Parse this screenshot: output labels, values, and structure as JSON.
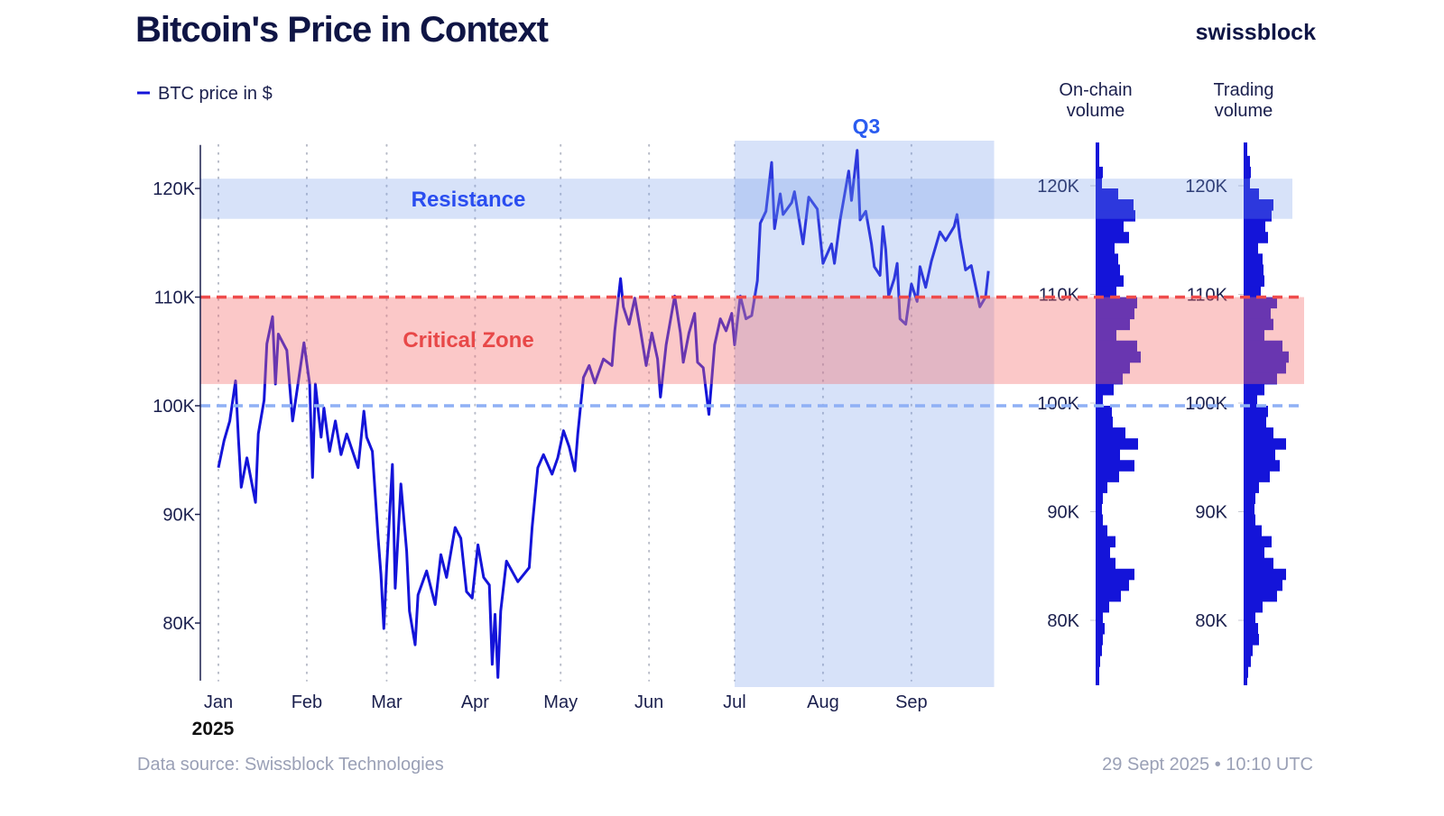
{
  "header": {
    "title": "Bitcoin's Price in Context",
    "logo": "swissblock"
  },
  "footer": {
    "source": "Data source: Swissblock Technologies",
    "timestamp": "29 Sept 2025 • 10:10 UTC"
  },
  "colors": {
    "line": "#1414d9",
    "title": "#0f1545",
    "resistance": "#2a4df0",
    "critical": "#e84848",
    "critical_line": "#ef4b4b",
    "support_line": "#8fb0f5",
    "q3": "#2a5cf0",
    "footer": "#9aa0b6"
  },
  "chart_data": [
    {
      "type": "line",
      "title": "Bitcoin's Price in Context",
      "legend": {
        "label": "BTC price in $",
        "placement": "top-left"
      },
      "x_tick_labels": [
        "Jan",
        "Feb",
        "Mar",
        "Apr",
        "May",
        "Jun",
        "Jul",
        "Aug",
        "Sep"
      ],
      "x_ticks": [
        "2025-01-01",
        "2025-02-01",
        "2025-03-01",
        "2025-04-01",
        "2025-05-01",
        "2025-06-01",
        "2025-07-01",
        "2025-08-01",
        "2025-09-01"
      ],
      "x_year_label": "2025",
      "y_tick_labels": [
        "80K",
        "90K",
        "100K",
        "110K",
        "120K"
      ],
      "y_ticks": [
        80000,
        90000,
        100000,
        110000,
        120000
      ],
      "ylim": [
        74700,
        124000
      ],
      "grid": "vertical dotted at month starts",
      "annotations": {
        "resistance": {
          "label": "Resistance",
          "range": [
            117200,
            120900
          ]
        },
        "critical_zone": {
          "label": "Critical Zone",
          "range": [
            102000,
            110000
          ]
        },
        "critical_line": 110000,
        "support_line": 100000,
        "q3": {
          "label": "Q3",
          "range": [
            "2025-07-01",
            "2025-09-30"
          ]
        }
      },
      "series": [
        {
          "name": "BTC price in $",
          "points": [
            [
              "2025-01-01",
              94300
            ],
            [
              "2025-01-03",
              96800
            ],
            [
              "2025-01-05",
              98600
            ],
            [
              "2025-01-07",
              102300
            ],
            [
              "2025-01-08",
              97100
            ],
            [
              "2025-01-09",
              92500
            ],
            [
              "2025-01-11",
              95200
            ],
            [
              "2025-01-14",
              91100
            ],
            [
              "2025-01-15",
              97400
            ],
            [
              "2025-01-17",
              100500
            ],
            [
              "2025-01-18",
              105700
            ],
            [
              "2025-01-20",
              108200
            ],
            [
              "2025-01-21",
              102000
            ],
            [
              "2025-01-22",
              106600
            ],
            [
              "2025-01-25",
              105100
            ],
            [
              "2025-01-27",
              98600
            ],
            [
              "2025-01-31",
              105800
            ],
            [
              "2025-02-02",
              102000
            ],
            [
              "2025-02-03",
              93400
            ],
            [
              "2025-02-04",
              102000
            ],
            [
              "2025-02-06",
              97100
            ],
            [
              "2025-02-07",
              99800
            ],
            [
              "2025-02-09",
              95800
            ],
            [
              "2025-02-11",
              98600
            ],
            [
              "2025-02-13",
              95500
            ],
            [
              "2025-02-15",
              97400
            ],
            [
              "2025-02-19",
              94300
            ],
            [
              "2025-02-21",
              99500
            ],
            [
              "2025-02-22",
              97100
            ],
            [
              "2025-02-24",
              95800
            ],
            [
              "2025-02-26",
              87800
            ],
            [
              "2025-02-27",
              84500
            ],
            [
              "2025-02-28",
              79500
            ],
            [
              "2025-03-01",
              85100
            ],
            [
              "2025-03-03",
              94600
            ],
            [
              "2025-03-04",
              83200
            ],
            [
              "2025-03-06",
              92800
            ],
            [
              "2025-03-08",
              86600
            ],
            [
              "2025-03-09",
              81100
            ],
            [
              "2025-03-11",
              78000
            ],
            [
              "2025-03-12",
              82600
            ],
            [
              "2025-03-15",
              84800
            ],
            [
              "2025-03-18",
              81700
            ],
            [
              "2025-03-20",
              86300
            ],
            [
              "2025-03-22",
              84200
            ],
            [
              "2025-03-25",
              88800
            ],
            [
              "2025-03-27",
              87800
            ],
            [
              "2025-03-29",
              82900
            ],
            [
              "2025-03-31",
              82300
            ],
            [
              "2025-04-02",
              87200
            ],
            [
              "2025-04-04",
              84200
            ],
            [
              "2025-04-06",
              83500
            ],
            [
              "2025-04-07",
              76200
            ],
            [
              "2025-04-08",
              80800
            ],
            [
              "2025-04-09",
              75000
            ],
            [
              "2025-04-10",
              81100
            ],
            [
              "2025-04-12",
              85700
            ],
            [
              "2025-04-16",
              83800
            ],
            [
              "2025-04-20",
              85100
            ],
            [
              "2025-04-21",
              88800
            ],
            [
              "2025-04-23",
              94300
            ],
            [
              "2025-04-25",
              95500
            ],
            [
              "2025-04-28",
              93700
            ],
            [
              "2025-04-30",
              95200
            ],
            [
              "2025-05-02",
              97700
            ],
            [
              "2025-05-04",
              96200
            ],
            [
              "2025-05-06",
              94000
            ],
            [
              "2025-05-07",
              97400
            ],
            [
              "2025-05-09",
              102600
            ],
            [
              "2025-05-11",
              103700
            ],
            [
              "2025-05-13",
              102100
            ],
            [
              "2025-05-16",
              104300
            ],
            [
              "2025-05-19",
              103700
            ],
            [
              "2025-05-20",
              106900
            ],
            [
              "2025-05-22",
              111700
            ],
            [
              "2025-05-23",
              109100
            ],
            [
              "2025-05-25",
              107500
            ],
            [
              "2025-05-27",
              109900
            ],
            [
              "2025-05-29",
              106900
            ],
            [
              "2025-05-31",
              103700
            ],
            [
              "2025-06-02",
              106700
            ],
            [
              "2025-06-04",
              104300
            ],
            [
              "2025-06-05",
              100800
            ],
            [
              "2025-06-07",
              105600
            ],
            [
              "2025-06-10",
              110100
            ],
            [
              "2025-06-12",
              106700
            ],
            [
              "2025-06-13",
              104000
            ],
            [
              "2025-06-15",
              106700
            ],
            [
              "2025-06-17",
              108500
            ],
            [
              "2025-06-18",
              104000
            ],
            [
              "2025-06-20",
              103500
            ],
            [
              "2025-06-22",
              99200
            ],
            [
              "2025-06-24",
              105600
            ],
            [
              "2025-06-26",
              108000
            ],
            [
              "2025-06-28",
              106900
            ],
            [
              "2025-06-30",
              108500
            ],
            [
              "2025-07-01",
              105600
            ],
            [
              "2025-07-03",
              110100
            ],
            [
              "2025-07-05",
              108000
            ],
            [
              "2025-07-07",
              108300
            ],
            [
              "2025-07-09",
              111500
            ],
            [
              "2025-07-10",
              116800
            ],
            [
              "2025-07-12",
              117900
            ],
            [
              "2025-07-14",
              122400
            ],
            [
              "2025-07-15",
              116300
            ],
            [
              "2025-07-17",
              119500
            ],
            [
              "2025-07-18",
              117600
            ],
            [
              "2025-07-21",
              118700
            ],
            [
              "2025-07-22",
              119700
            ],
            [
              "2025-07-25",
              114900
            ],
            [
              "2025-07-27",
              119200
            ],
            [
              "2025-07-30",
              118100
            ],
            [
              "2025-08-01",
              113100
            ],
            [
              "2025-08-04",
              114900
            ],
            [
              "2025-08-05",
              113100
            ],
            [
              "2025-08-07",
              117100
            ],
            [
              "2025-08-10",
              121600
            ],
            [
              "2025-08-11",
              118900
            ],
            [
              "2025-08-13",
              123500
            ],
            [
              "2025-08-14",
              117100
            ],
            [
              "2025-08-16",
              117900
            ],
            [
              "2025-08-18",
              114900
            ],
            [
              "2025-08-19",
              112800
            ],
            [
              "2025-08-21",
              112000
            ],
            [
              "2025-08-22",
              116500
            ],
            [
              "2025-08-23",
              114400
            ],
            [
              "2025-08-24",
              110100
            ],
            [
              "2025-08-26",
              111700
            ],
            [
              "2025-08-27",
              113100
            ],
            [
              "2025-08-28",
              108000
            ],
            [
              "2025-08-30",
              107500
            ],
            [
              "2025-09-01",
              111200
            ],
            [
              "2025-09-03",
              109600
            ],
            [
              "2025-09-04",
              112800
            ],
            [
              "2025-09-06",
              110900
            ],
            [
              "2025-09-08",
              113300
            ],
            [
              "2025-09-11",
              116000
            ],
            [
              "2025-09-13",
              115200
            ],
            [
              "2025-09-16",
              116500
            ],
            [
              "2025-09-17",
              117600
            ],
            [
              "2025-09-18",
              115500
            ],
            [
              "2025-09-20",
              112500
            ],
            [
              "2025-09-22",
              112900
            ],
            [
              "2025-09-25",
              109100
            ],
            [
              "2025-09-27",
              110000
            ],
            [
              "2025-09-28",
              112400
            ]
          ]
        }
      ]
    },
    {
      "type": "bar",
      "orientation": "horizontal",
      "title": "On-chain volume",
      "y_tick_labels": [
        "80K",
        "90K",
        "100K",
        "110K",
        "120K"
      ],
      "bin_width": 1000,
      "bin_lower_edges": [
        123000,
        122000,
        121000,
        120000,
        119000,
        118000,
        117000,
        116000,
        115000,
        114000,
        113000,
        112000,
        111000,
        110000,
        109000,
        108000,
        107000,
        106000,
        105000,
        104000,
        103000,
        102000,
        101000,
        100000,
        99000,
        98000,
        97000,
        96000,
        95000,
        94000,
        93000,
        92000,
        91000,
        90000,
        89000,
        88000,
        87000,
        86000,
        85000,
        84000,
        83000,
        82000,
        81000,
        80000,
        79000,
        78000,
        77000,
        76000,
        75000
      ],
      "values_relative": [
        2,
        4,
        8,
        7,
        25,
        42,
        44,
        31,
        37,
        21,
        25,
        27,
        31,
        23,
        46,
        43,
        38,
        23,
        46,
        50,
        38,
        30,
        20,
        8,
        18,
        19,
        33,
        47,
        27,
        43,
        26,
        13,
        8,
        7,
        8,
        13,
        22,
        16,
        22,
        43,
        37,
        28,
        15,
        8,
        10,
        8,
        7,
        5,
        3
      ]
    },
    {
      "type": "bar",
      "orientation": "horizontal",
      "title": "Trading volume",
      "y_tick_labels": [
        "80K",
        "90K",
        "100K",
        "110K",
        "120K"
      ],
      "bin_width": 1000,
      "bin_lower_edges": [
        123000,
        122000,
        121000,
        120000,
        119000,
        118000,
        117000,
        116000,
        115000,
        114000,
        113000,
        112000,
        111000,
        110000,
        109000,
        108000,
        107000,
        106000,
        105000,
        104000,
        103000,
        102000,
        101000,
        100000,
        99000,
        98000,
        97000,
        96000,
        95000,
        94000,
        93000,
        92000,
        91000,
        90000,
        89000,
        88000,
        87000,
        86000,
        85000,
        84000,
        83000,
        82000,
        81000,
        80000,
        79000,
        78000,
        77000,
        76000,
        75000
      ],
      "values_relative": [
        2,
        7,
        8,
        7,
        17,
        33,
        31,
        24,
        27,
        16,
        21,
        22,
        23,
        19,
        37,
        30,
        33,
        23,
        43,
        50,
        47,
        37,
        23,
        15,
        27,
        25,
        33,
        47,
        35,
        40,
        29,
        17,
        13,
        12,
        13,
        20,
        31,
        23,
        33,
        47,
        43,
        37,
        21,
        13,
        16,
        17,
        10,
        8,
        5
      ]
    }
  ]
}
